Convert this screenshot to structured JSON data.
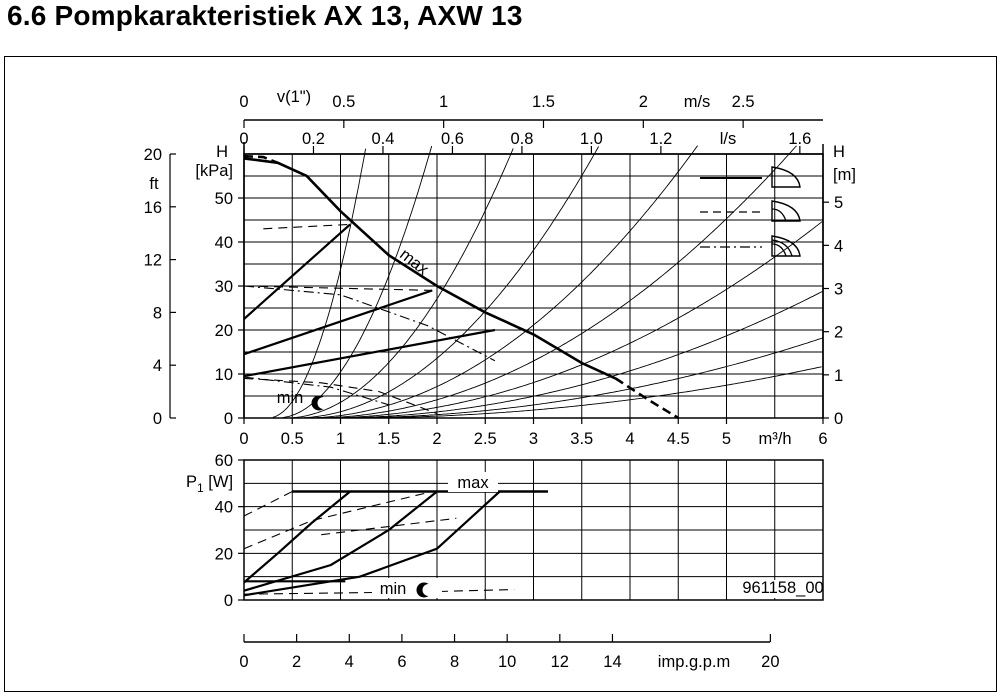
{
  "title": "6.6  Pompkarakteristiek AX 13, AXW 13",
  "figure_code": "961158_00",
  "chart_data": [
    {
      "type": "line",
      "name": "head-curve",
      "xlabel": "m³/h",
      "ylabel_left": "H [kPa]",
      "ylabel_right": "H [m]",
      "ylabel_ft": "ft",
      "x_range": [
        0,
        6
      ],
      "y_range": [
        0,
        60
      ],
      "x_ticks": [
        "0",
        "0.5",
        "1",
        "1.5",
        "2",
        "2.5",
        "3",
        "3.5",
        "4",
        "4.5",
        "5",
        "6"
      ],
      "x_tick_values": [
        0,
        0.5,
        1,
        1.5,
        2,
        2.5,
        3,
        3.5,
        4,
        4.5,
        5,
        6
      ],
      "x_unit_label": "m³/h",
      "y_ticks_kpa": [
        "0",
        "10",
        "20",
        "30",
        "40",
        "50"
      ],
      "y_tick_values_kpa": [
        0,
        10,
        20,
        30,
        40,
        50
      ],
      "y_ticks_m": [
        "0",
        "1",
        "2",
        "3",
        "4",
        "5"
      ],
      "y_ticks_ft": [
        "0",
        "4",
        "8",
        "12",
        "16",
        "20"
      ],
      "top_axis_ls": {
        "label": "l/s",
        "ticks": [
          "0",
          "0.2",
          "0.4",
          "0.6",
          "0.8",
          "1.0",
          "1.2",
          "1.6"
        ],
        "values": [
          0,
          0.2,
          0.4,
          0.6,
          0.8,
          1.0,
          1.2,
          1.6
        ]
      },
      "top_axis_v": {
        "label": "m/s",
        "name": "v(1\")",
        "ticks": [
          "0",
          "0.5",
          "1",
          "1.5",
          "2",
          "2.5"
        ],
        "values": [
          0,
          0.5,
          1,
          1.5,
          2,
          2.5
        ]
      },
      "annotations": {
        "max_label": "max",
        "min_label": "min"
      },
      "series": [
        {
          "name": "max",
          "style": "solid",
          "x": [
            0,
            0.35,
            0.65,
            1.0,
            1.5,
            2.0,
            2.5,
            3.0,
            3.5,
            3.85
          ],
          "y": [
            59,
            58,
            55,
            47,
            37,
            30,
            24,
            19,
            12.5,
            9
          ]
        },
        {
          "name": "max",
          "style": "dashed",
          "x": [
            3.85,
            4.2,
            4.5
          ],
          "y": [
            9,
            4,
            0
          ]
        },
        {
          "name": "max",
          "style": "dashed",
          "x": [
            0,
            0.2,
            0.35
          ],
          "y": [
            59.5,
            59.3,
            58
          ]
        },
        {
          "style": "solid",
          "x": [
            0,
            1.1
          ],
          "y": [
            22.5,
            44
          ]
        },
        {
          "style": "solid",
          "x": [
            0,
            1.95
          ],
          "y": [
            14.5,
            29
          ]
        },
        {
          "style": "solid",
          "x": [
            0,
            2.6
          ],
          "y": [
            9.5,
            20
          ]
        },
        {
          "style": "dashed",
          "x": [
            0.2,
            1.1
          ],
          "y": [
            43,
            44
          ]
        },
        {
          "style": "dashed",
          "x": [
            0,
            1.95
          ],
          "y": [
            30,
            29
          ]
        },
        {
          "style": "dashdot",
          "x": [
            0,
            1.0,
            1.9,
            2.6
          ],
          "y": [
            30,
            28,
            21,
            13
          ]
        },
        {
          "style": "dashed",
          "x": [
            0,
            0.8,
            1.4,
            2.0
          ],
          "y": [
            9,
            8,
            6,
            1
          ]
        },
        {
          "style": "dashdot",
          "x": [
            0,
            0.9,
            1.5
          ],
          "y": [
            9.3,
            7,
            3
          ]
        }
      ],
      "legend": [
        "solid",
        "dashed",
        "dashdot"
      ]
    },
    {
      "type": "line",
      "name": "power-curve",
      "ylabel": "P1 [W]",
      "x_range": [
        0,
        6
      ],
      "y_range": [
        0,
        60
      ],
      "y_ticks": [
        "0",
        "20",
        "40",
        "60"
      ],
      "y_tick_values": [
        0,
        20,
        40,
        60
      ],
      "annotations": {
        "max_label": "max",
        "min_label": "min"
      },
      "series": [
        {
          "name": "max",
          "style": "solid",
          "x": [
            0.5,
            3.15
          ],
          "y": [
            46.5,
            46.5
          ]
        },
        {
          "style": "dashed",
          "x": [
            0,
            0.5
          ],
          "y": [
            36,
            46.5
          ]
        },
        {
          "style": "solid",
          "x": [
            0,
            0.35,
            0.7,
            1.1
          ],
          "y": [
            7.5,
            20,
            33,
            46.5
          ]
        },
        {
          "style": "solid",
          "x": [
            0,
            0.9,
            1.5,
            2.0
          ],
          "y": [
            4,
            15,
            30,
            46.5
          ]
        },
        {
          "style": "solid",
          "x": [
            0,
            1.2,
            2.0,
            2.65
          ],
          "y": [
            2,
            10,
            22,
            46.5
          ]
        },
        {
          "style": "dashed",
          "x": [
            0,
            0.7,
            1.3,
            1.9
          ],
          "y": [
            22,
            34,
            40,
            46
          ]
        },
        {
          "style": "dashed",
          "x": [
            0.8,
            1.8,
            2.2
          ],
          "y": [
            28,
            33,
            35
          ]
        },
        {
          "style": "solid",
          "x": [
            0,
            1.05
          ],
          "y": [
            8,
            8
          ]
        },
        {
          "style": "dashed",
          "x": [
            0,
            1.9,
            2.8
          ],
          "y": [
            2.5,
            3.5,
            4.5
          ]
        }
      ]
    },
    {
      "type": "line",
      "name": "imperial-flow-axis",
      "xlabel": "imp.g.p.m",
      "ticks": [
        "0",
        "2",
        "4",
        "6",
        "8",
        "10",
        "12",
        "14",
        "20"
      ],
      "values": [
        0,
        2,
        4,
        6,
        8,
        10,
        12,
        14,
        20
      ]
    }
  ]
}
